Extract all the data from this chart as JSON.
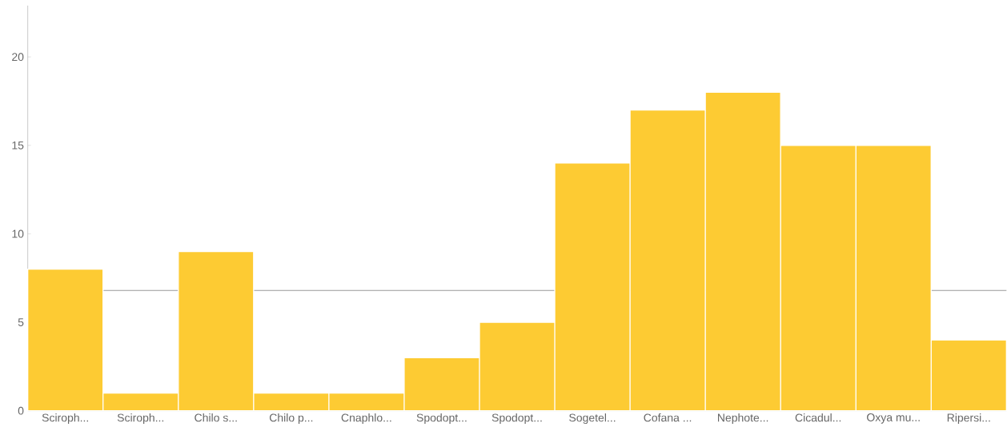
{
  "chart_data": {
    "type": "bar",
    "categories": [
      "Sciroph...",
      "Sciroph...",
      "Chilo s...",
      "Chilo p...",
      "Cnaphlo...",
      "Spodopt...",
      "Spodopt...",
      "Sogetel...",
      "Cofana ...",
      "Nephote...",
      "Cicadul...",
      "Oxya mu...",
      "Ripersi..."
    ],
    "values": [
      8,
      1,
      9,
      1,
      1,
      3,
      5,
      14,
      17,
      18,
      15,
      15,
      4
    ],
    "color": "#fdcb33",
    "ylim": [
      0,
      22.9
    ],
    "yticks": [
      0,
      5,
      10,
      15,
      20
    ],
    "ref_lines": [
      {
        "axis": "y",
        "value": 6.8,
        "color": "#999999"
      }
    ],
    "grid": false
  }
}
